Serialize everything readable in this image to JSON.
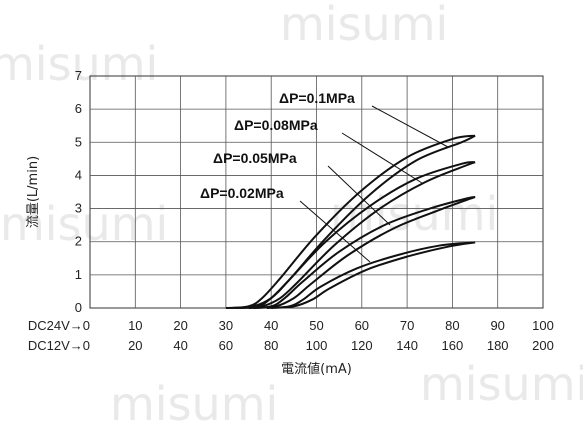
{
  "watermark": "misumi",
  "chart_data": {
    "type": "line",
    "ylabel": "流量(L/min)",
    "xlabel": "電流値(mA)",
    "ylim": [
      0,
      7
    ],
    "xlim_dc12": [
      0,
      200
    ],
    "xlim_dc24": [
      0,
      100
    ],
    "yticks": [
      "0",
      "1",
      "2",
      "3",
      "4",
      "5",
      "6",
      "7"
    ],
    "x_axis_rows": [
      {
        "label": "DC24V→0",
        "ticks": [
          "10",
          "20",
          "30",
          "40",
          "50",
          "60",
          "70",
          "80",
          "90",
          "100"
        ]
      },
      {
        "label": "DC12V→0",
        "ticks": [
          "20",
          "40",
          "60",
          "80",
          "100",
          "120",
          "140",
          "160",
          "180",
          "200"
        ]
      }
    ],
    "grid": true,
    "x_unit_note": "x values are DC12V current in mA",
    "series": [
      {
        "name": "ΔP=0.1MPa",
        "upper": [
          [
            60,
            0
          ],
          [
            70,
            0.05
          ],
          [
            76,
            0.3
          ],
          [
            84,
            0.9
          ],
          [
            100,
            2.2
          ],
          [
            120,
            3.55
          ],
          [
            140,
            4.55
          ],
          [
            160,
            5.1
          ],
          [
            170,
            5.2
          ]
        ],
        "lower": [
          [
            62,
            0
          ],
          [
            72,
            0.05
          ],
          [
            80,
            0.3
          ],
          [
            88,
            0.85
          ],
          [
            104,
            2.1
          ],
          [
            124,
            3.45
          ],
          [
            144,
            4.45
          ],
          [
            164,
            5.0
          ],
          [
            170,
            5.2
          ]
        ]
      },
      {
        "name": "ΔP=0.08MPa",
        "upper": [
          [
            64,
            0
          ],
          [
            74,
            0.05
          ],
          [
            80,
            0.3
          ],
          [
            88,
            0.85
          ],
          [
            104,
            2.0
          ],
          [
            124,
            3.1
          ],
          [
            144,
            3.9
          ],
          [
            164,
            4.35
          ],
          [
            170,
            4.4
          ]
        ],
        "lower": [
          [
            66,
            0
          ],
          [
            76,
            0.05
          ],
          [
            84,
            0.3
          ],
          [
            92,
            0.8
          ],
          [
            108,
            1.9
          ],
          [
            128,
            3.0
          ],
          [
            148,
            3.8
          ],
          [
            166,
            4.3
          ],
          [
            170,
            4.4
          ]
        ]
      },
      {
        "name": "ΔP=0.05MPa",
        "upper": [
          [
            70,
            0
          ],
          [
            80,
            0.05
          ],
          [
            86,
            0.3
          ],
          [
            94,
            0.8
          ],
          [
            110,
            1.7
          ],
          [
            130,
            2.5
          ],
          [
            150,
            3.0
          ],
          [
            166,
            3.3
          ],
          [
            170,
            3.35
          ]
        ],
        "lower": [
          [
            72,
            0
          ],
          [
            82,
            0.05
          ],
          [
            90,
            0.3
          ],
          [
            98,
            0.75
          ],
          [
            114,
            1.6
          ],
          [
            134,
            2.4
          ],
          [
            154,
            2.95
          ],
          [
            168,
            3.3
          ],
          [
            170,
            3.35
          ]
        ]
      },
      {
        "name": "ΔP=0.02MPa",
        "upper": [
          [
            78,
            0
          ],
          [
            88,
            0.05
          ],
          [
            94,
            0.25
          ],
          [
            102,
            0.65
          ],
          [
            118,
            1.2
          ],
          [
            136,
            1.6
          ],
          [
            154,
            1.88
          ],
          [
            170,
            1.98
          ]
        ],
        "lower": [
          [
            80,
            0
          ],
          [
            90,
            0.05
          ],
          [
            98,
            0.25
          ],
          [
            106,
            0.6
          ],
          [
            122,
            1.15
          ],
          [
            140,
            1.55
          ],
          [
            158,
            1.85
          ],
          [
            170,
            1.98
          ]
        ]
      }
    ]
  }
}
